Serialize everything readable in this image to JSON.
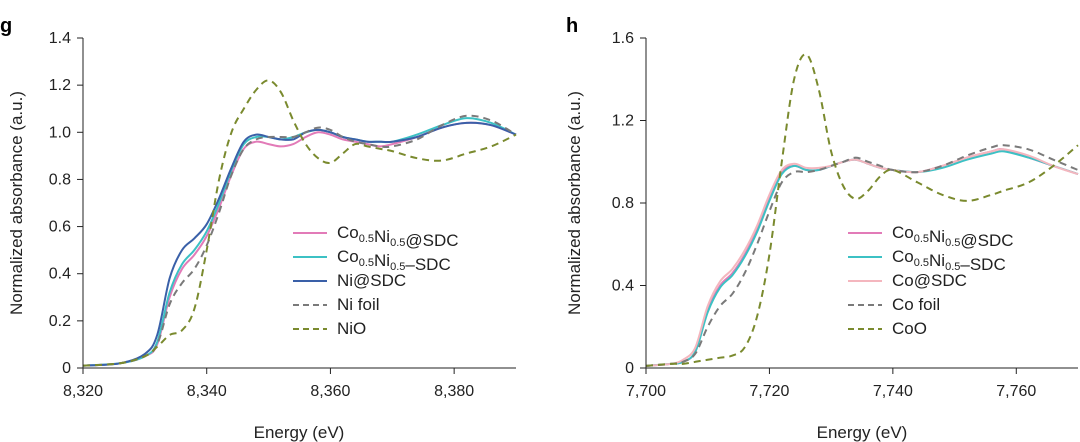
{
  "chart_data": [
    {
      "panel": "g",
      "type": "line",
      "xlabel": "Energy (eV)",
      "ylabel": "Normalized absorbance (a.u.)",
      "xlim": [
        8320,
        8390
      ],
      "ylim": [
        0,
        1.4
      ],
      "xticks": [
        8320,
        8340,
        8360,
        8380
      ],
      "xtick_labels": [
        "8,320",
        "8,340",
        "8,360",
        "8,380"
      ],
      "yticks": [
        0,
        0.2,
        0.4,
        0.6,
        0.8,
        1.0,
        1.2,
        1.4
      ],
      "ytick_labels": [
        "0",
        "0.2",
        "0.4",
        "0.6",
        "0.8",
        "1.0",
        "1.2",
        "1.4"
      ],
      "legend": [
        {
          "base": "Co",
          "sub1": "0.5",
          "mid": "Ni",
          "sub2": "0.5",
          "tail": "@SDC"
        },
        {
          "base": "Co",
          "sub1": "0.5",
          "mid": "Ni",
          "sub2": "0.5",
          "tail": "–SDC"
        },
        {
          "base": "Ni@SDC",
          "sub1": "",
          "mid": "",
          "sub2": "",
          "tail": ""
        },
        {
          "base": "Ni foil",
          "sub1": "",
          "mid": "",
          "sub2": "",
          "tail": ""
        },
        {
          "base": "NiO",
          "sub1": "",
          "mid": "",
          "sub2": "",
          "tail": ""
        }
      ],
      "series": [
        {
          "name": "Co0.5Ni0.5@SDC",
          "color": "#e27bb8",
          "dash": false,
          "x": [
            8320,
            8326,
            8330,
            8332,
            8334,
            8336,
            8338,
            8340,
            8342,
            8344,
            8346,
            8348,
            8350,
            8352,
            8354,
            8356,
            8358,
            8360,
            8362,
            8364,
            8366,
            8368,
            8370,
            8374,
            8378,
            8382,
            8386,
            8390
          ],
          "y": [
            0.01,
            0.02,
            0.05,
            0.1,
            0.3,
            0.42,
            0.48,
            0.56,
            0.68,
            0.82,
            0.93,
            0.96,
            0.95,
            0.94,
            0.95,
            0.98,
            1.0,
            0.99,
            0.97,
            0.96,
            0.95,
            0.94,
            0.95,
            0.98,
            1.02,
            1.04,
            1.03,
            0.99
          ]
        },
        {
          "name": "Co0.5Ni0.5–SDC",
          "color": "#3cc1c4",
          "dash": false,
          "x": [
            8320,
            8326,
            8330,
            8332,
            8334,
            8336,
            8338,
            8340,
            8342,
            8344,
            8346,
            8348,
            8350,
            8352,
            8354,
            8356,
            8358,
            8360,
            8362,
            8364,
            8366,
            8368,
            8370,
            8374,
            8378,
            8382,
            8386,
            8390
          ],
          "y": [
            0.01,
            0.02,
            0.05,
            0.11,
            0.32,
            0.44,
            0.5,
            0.58,
            0.7,
            0.84,
            0.95,
            0.98,
            0.98,
            0.97,
            0.98,
            1.0,
            1.01,
            1.0,
            0.98,
            0.97,
            0.96,
            0.96,
            0.96,
            0.99,
            1.03,
            1.06,
            1.04,
            0.99
          ]
        },
        {
          "name": "Ni@SDC",
          "color": "#3a60a8",
          "dash": false,
          "x": [
            8320,
            8326,
            8330,
            8332,
            8334,
            8336,
            8338,
            8340,
            8342,
            8344,
            8346,
            8348,
            8350,
            8352,
            8354,
            8356,
            8358,
            8360,
            8362,
            8364,
            8366,
            8368,
            8370,
            8374,
            8378,
            8382,
            8386,
            8390
          ],
          "y": [
            0.01,
            0.02,
            0.06,
            0.14,
            0.38,
            0.5,
            0.55,
            0.61,
            0.72,
            0.85,
            0.96,
            0.99,
            0.98,
            0.97,
            0.97,
            1.0,
            1.01,
            1.0,
            0.98,
            0.97,
            0.96,
            0.96,
            0.96,
            0.98,
            1.02,
            1.04,
            1.03,
            0.99
          ]
        },
        {
          "name": "Ni foil",
          "color": "#7a7a7a",
          "dash": true,
          "x": [
            8320,
            8326,
            8330,
            8332,
            8334,
            8336,
            8338,
            8340,
            8342,
            8344,
            8346,
            8348,
            8350,
            8352,
            8354,
            8356,
            8358,
            8360,
            8362,
            8364,
            8366,
            8368,
            8370,
            8374,
            8378,
            8382,
            8386,
            8390
          ],
          "y": [
            0.01,
            0.02,
            0.05,
            0.1,
            0.27,
            0.36,
            0.42,
            0.52,
            0.66,
            0.82,
            0.93,
            0.97,
            0.98,
            0.98,
            0.98,
            1.0,
            1.02,
            1.01,
            0.98,
            0.96,
            0.95,
            0.94,
            0.94,
            0.97,
            1.03,
            1.07,
            1.05,
            0.99
          ]
        },
        {
          "name": "NiO",
          "color": "#7a8a2e",
          "dash": true,
          "x": [
            8320,
            8326,
            8330,
            8332,
            8334,
            8336,
            8338,
            8340,
            8342,
            8344,
            8346,
            8348,
            8350,
            8352,
            8354,
            8356,
            8358,
            8360,
            8362,
            8364,
            8366,
            8368,
            8370,
            8374,
            8378,
            8382,
            8386,
            8390
          ],
          "y": [
            0.01,
            0.02,
            0.05,
            0.09,
            0.14,
            0.16,
            0.25,
            0.5,
            0.8,
            1.0,
            1.1,
            1.18,
            1.22,
            1.17,
            1.05,
            0.95,
            0.89,
            0.87,
            0.91,
            0.95,
            0.94,
            0.93,
            0.92,
            0.89,
            0.88,
            0.91,
            0.94,
            0.99
          ]
        }
      ]
    },
    {
      "panel": "h",
      "type": "line",
      "xlabel": "Energy (eV)",
      "ylabel": "Normalized absorbance (a.u.)",
      "xlim": [
        7700,
        7770
      ],
      "ylim": [
        0,
        1.6
      ],
      "xticks": [
        7700,
        7720,
        7740,
        7760
      ],
      "xtick_labels": [
        "7,700",
        "7,720",
        "7,740",
        "7,760"
      ],
      "yticks": [
        0,
        0.4,
        0.8,
        1.2,
        1.6
      ],
      "ytick_labels": [
        "0",
        "0.4",
        "0.8",
        "1.2",
        "1.6"
      ],
      "legend": [
        {
          "base": "Co",
          "sub1": "0.5",
          "mid": "Ni",
          "sub2": "0.5",
          "tail": "@SDC"
        },
        {
          "base": "Co",
          "sub1": "0.5",
          "mid": "Ni",
          "sub2": "0.5",
          "tail": "–SDC"
        },
        {
          "base": "Co@SDC",
          "sub1": "",
          "mid": "",
          "sub2": "",
          "tail": ""
        },
        {
          "base": "Co foil",
          "sub1": "",
          "mid": "",
          "sub2": "",
          "tail": ""
        },
        {
          "base": "CoO",
          "sub1": "",
          "mid": "",
          "sub2": "",
          "tail": ""
        }
      ],
      "series": [
        {
          "name": "Co0.5Ni0.5@SDC",
          "color": "#e27bb8",
          "dash": false,
          "x": [
            7700,
            7704,
            7706,
            7708,
            7710,
            7712,
            7714,
            7716,
            7718,
            7720,
            7722,
            7724,
            7726,
            7728,
            7730,
            7732,
            7734,
            7736,
            7738,
            7740,
            7744,
            7748,
            7752,
            7756,
            7758,
            7762,
            7766,
            7770
          ],
          "y": [
            0.01,
            0.02,
            0.03,
            0.08,
            0.28,
            0.4,
            0.46,
            0.55,
            0.67,
            0.82,
            0.95,
            0.98,
            0.96,
            0.96,
            0.98,
            1.0,
            1.01,
            0.99,
            0.97,
            0.96,
            0.95,
            0.98,
            1.02,
            1.05,
            1.06,
            1.02,
            0.98,
            0.94
          ]
        },
        {
          "name": "Co0.5Ni0.5–SDC",
          "color": "#3cc1c4",
          "dash": false,
          "x": [
            7700,
            7704,
            7706,
            7708,
            7710,
            7712,
            7714,
            7716,
            7718,
            7720,
            7722,
            7724,
            7726,
            7728,
            7730,
            7732,
            7734,
            7736,
            7738,
            7740,
            7744,
            7748,
            7752,
            7756,
            7758,
            7762,
            7766,
            7770
          ],
          "y": [
            0.01,
            0.02,
            0.03,
            0.08,
            0.27,
            0.39,
            0.45,
            0.54,
            0.66,
            0.81,
            0.94,
            0.98,
            0.96,
            0.96,
            0.98,
            1.0,
            1.01,
            0.99,
            0.97,
            0.96,
            0.95,
            0.97,
            1.01,
            1.04,
            1.05,
            1.02,
            0.98,
            0.94
          ]
        },
        {
          "name": "Co@SDC",
          "color": "#f4b6be",
          "dash": false,
          "x": [
            7700,
            7704,
            7706,
            7708,
            7710,
            7712,
            7714,
            7716,
            7718,
            7720,
            7722,
            7724,
            7726,
            7728,
            7730,
            7732,
            7734,
            7736,
            7738,
            7740,
            7744,
            7748,
            7752,
            7756,
            7758,
            7762,
            7766,
            7770
          ],
          "y": [
            0.01,
            0.02,
            0.04,
            0.1,
            0.3,
            0.42,
            0.48,
            0.57,
            0.69,
            0.84,
            0.96,
            0.99,
            0.97,
            0.97,
            0.98,
            1.0,
            1.01,
            0.99,
            0.97,
            0.96,
            0.95,
            0.98,
            1.02,
            1.05,
            1.06,
            1.03,
            0.98,
            0.94
          ]
        },
        {
          "name": "Co foil",
          "color": "#7a7a7a",
          "dash": true,
          "x": [
            7700,
            7704,
            7706,
            7708,
            7710,
            7712,
            7714,
            7716,
            7718,
            7720,
            7722,
            7724,
            7726,
            7728,
            7730,
            7732,
            7734,
            7736,
            7738,
            7740,
            7744,
            7748,
            7752,
            7756,
            7758,
            7762,
            7766,
            7770
          ],
          "y": [
            0.01,
            0.02,
            0.03,
            0.07,
            0.2,
            0.3,
            0.36,
            0.46,
            0.6,
            0.76,
            0.9,
            0.95,
            0.95,
            0.96,
            0.98,
            1.0,
            1.02,
            1.0,
            0.98,
            0.96,
            0.95,
            0.98,
            1.03,
            1.07,
            1.08,
            1.06,
            1.01,
            0.96
          ]
        },
        {
          "name": "CoO",
          "color": "#7a8a2e",
          "dash": true,
          "x": [
            7700,
            7704,
            7706,
            7708,
            7710,
            7712,
            7714,
            7716,
            7718,
            7720,
            7722,
            7724,
            7726,
            7728,
            7730,
            7732,
            7734,
            7736,
            7738,
            7740,
            7744,
            7748,
            7752,
            7756,
            7758,
            7762,
            7766,
            7770
          ],
          "y": [
            0.01,
            0.02,
            0.02,
            0.03,
            0.04,
            0.05,
            0.06,
            0.1,
            0.25,
            0.55,
            1.0,
            1.4,
            1.52,
            1.35,
            1.05,
            0.88,
            0.82,
            0.86,
            0.93,
            0.96,
            0.9,
            0.84,
            0.81,
            0.84,
            0.86,
            0.9,
            0.98,
            1.08
          ]
        }
      ]
    }
  ]
}
